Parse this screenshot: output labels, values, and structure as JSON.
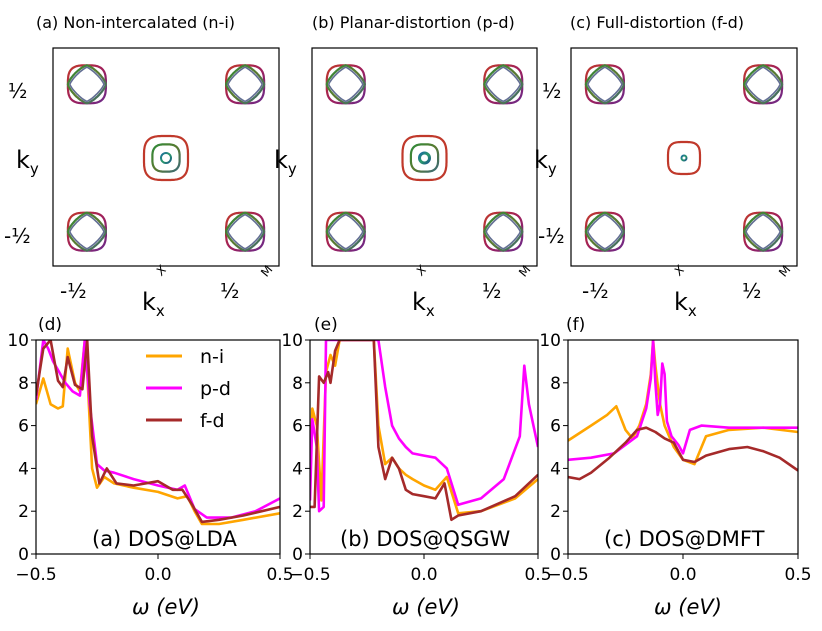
{
  "figure": {
    "fermi_panels": [
      {
        "title": "(a) Non-intercalated (n-i)",
        "center_sizes": [
          "large",
          "small"
        ],
        "corner_style": "n-i"
      },
      {
        "title": "(b) Planar-distortion (p-d)",
        "center_sizes": [
          "large",
          "small"
        ],
        "corner_style": "p-d"
      },
      {
        "title": "(c) Full-distortion (f-d)",
        "center_sizes": [
          "medium",
          "tiny"
        ],
        "corner_style": "f-d"
      }
    ],
    "fermi_axes": {
      "ylabel": "ky",
      "xlabel": "kx",
      "y_ticks": [
        "½",
        "-½"
      ],
      "x_ticks": [
        "-½",
        "½"
      ],
      "x_point": "X",
      "m_point": "M"
    }
  },
  "chart_data": [
    {
      "type": "line",
      "panel_label": "(d)",
      "annotation": "(a) DOS@LDA",
      "xlabel": "ω (eV)",
      "ylabel": "",
      "xlim": [
        -0.5,
        0.5
      ],
      "ylim": [
        0,
        10
      ],
      "x_ticks": [
        "−0.5",
        "0.0",
        "0.5"
      ],
      "y_ticks": [
        "0",
        "2",
        "4",
        "6",
        "8",
        "10"
      ],
      "legend": [
        "n-i",
        "p-d",
        "f-d"
      ],
      "legend_position": "top-center",
      "series": [
        {
          "name": "n-i",
          "color": "#ffa500",
          "x": [
            -0.5,
            -0.47,
            -0.44,
            -0.41,
            -0.39,
            -0.37,
            -0.34,
            -0.32,
            -0.3,
            -0.29,
            -0.27,
            -0.25,
            -0.22,
            -0.18,
            -0.1,
            0,
            0.08,
            0.12,
            0.15,
            0.18,
            0.25,
            0.35,
            0.5
          ],
          "y": [
            7.0,
            8.2,
            7.0,
            6.8,
            6.9,
            9.6,
            8.0,
            7.6,
            10.0,
            8.5,
            4.0,
            3.1,
            3.6,
            3.3,
            3.1,
            2.9,
            2.6,
            2.7,
            2.0,
            1.4,
            1.4,
            1.6,
            1.9
          ]
        },
        {
          "name": "p-d",
          "color": "#ff00ff",
          "x": [
            -0.5,
            -0.47,
            -0.45,
            -0.43,
            -0.41,
            -0.38,
            -0.35,
            -0.32,
            -0.3,
            -0.28,
            -0.25,
            -0.22,
            -0.18,
            -0.1,
            0,
            0.08,
            0.11,
            0.15,
            0.2,
            0.3,
            0.4,
            0.5
          ],
          "y": [
            7.2,
            10.0,
            9.6,
            9.0,
            8.6,
            8.0,
            7.6,
            7.4,
            10.0,
            7.0,
            4.2,
            3.9,
            3.8,
            3.5,
            3.2,
            3.0,
            3.2,
            2.1,
            1.7,
            1.7,
            2.0,
            2.6
          ]
        },
        {
          "name": "f-d",
          "color": "#a52a2a",
          "x": [
            -0.5,
            -0.47,
            -0.44,
            -0.41,
            -0.39,
            -0.37,
            -0.34,
            -0.31,
            -0.29,
            -0.27,
            -0.24,
            -0.21,
            -0.17,
            -0.1,
            0,
            0.06,
            0.1,
            0.14,
            0.18,
            0.25,
            0.35,
            0.5
          ],
          "y": [
            7.4,
            9.6,
            10.0,
            8.1,
            7.8,
            9.2,
            7.9,
            7.7,
            10.0,
            5.5,
            3.3,
            4.0,
            3.3,
            3.2,
            3.4,
            3.0,
            3.0,
            2.3,
            1.5,
            1.6,
            1.8,
            2.2
          ]
        }
      ]
    },
    {
      "type": "line",
      "panel_label": "(e)",
      "annotation": "(b) DOS@QSGW",
      "xlabel": "ω (eV)",
      "ylabel": "",
      "xlim": [
        -0.5,
        0.5
      ],
      "ylim": [
        0,
        10
      ],
      "x_ticks": [
        "−0.5",
        "0.0",
        "0.5"
      ],
      "y_ticks": [
        "0",
        "2",
        "4",
        "6",
        "8",
        "10"
      ],
      "series": [
        {
          "name": "n-i",
          "color": "#ffa500",
          "x": [
            -0.5,
            -0.49,
            -0.47,
            -0.45,
            -0.43,
            -0.41,
            -0.39,
            -0.37,
            -0.35,
            -0.3,
            -0.22,
            -0.2,
            -0.17,
            -0.14,
            -0.11,
            -0.08,
            -0.05,
            0,
            0.05,
            0.1,
            0.15,
            0.25,
            0.4,
            0.5
          ],
          "y": [
            3.0,
            6.8,
            6.0,
            2.5,
            8.5,
            9.3,
            8.8,
            10.0,
            10.0,
            10.0,
            10.0,
            6.0,
            4.2,
            4.5,
            4.0,
            3.7,
            3.5,
            3.2,
            3.0,
            3.6,
            1.9,
            2.0,
            2.6,
            3.5
          ]
        },
        {
          "name": "p-d",
          "color": "#ff00ff",
          "x": [
            -0.5,
            -0.49,
            -0.47,
            -0.46,
            -0.44,
            -0.43,
            -0.41,
            -0.39,
            -0.37,
            -0.35,
            -0.2,
            -0.17,
            -0.14,
            -0.11,
            -0.08,
            -0.05,
            0,
            0.05,
            0.1,
            0.15,
            0.25,
            0.35,
            0.42,
            0.44,
            0.46,
            0.5
          ],
          "y": [
            2.5,
            6.3,
            5.0,
            2.0,
            2.2,
            10.0,
            10.0,
            10.0,
            10.0,
            10.0,
            10.0,
            7.8,
            6.0,
            5.4,
            5.0,
            4.7,
            4.6,
            4.5,
            4.0,
            2.3,
            2.6,
            3.5,
            5.5,
            8.8,
            7.0,
            5.0
          ]
        },
        {
          "name": "f-d",
          "color": "#a52a2a",
          "x": [
            -0.5,
            -0.48,
            -0.46,
            -0.44,
            -0.42,
            -0.41,
            -0.39,
            -0.37,
            -0.35,
            -0.25,
            -0.22,
            -0.2,
            -0.17,
            -0.14,
            -0.11,
            -0.08,
            -0.05,
            0,
            0.05,
            0.09,
            0.12,
            0.15,
            0.25,
            0.4,
            0.5
          ],
          "y": [
            2.2,
            2.2,
            8.3,
            8.0,
            8.5,
            8.0,
            9.5,
            10.0,
            10.0,
            10.0,
            10.0,
            5.0,
            3.5,
            4.5,
            4.0,
            3.0,
            2.8,
            2.7,
            2.6,
            3.3,
            1.6,
            1.8,
            2.0,
            2.7,
            3.7
          ]
        }
      ]
    },
    {
      "type": "line",
      "panel_label": "(f)",
      "annotation": "(c) DOS@DMFT",
      "xlabel": "ω (eV)",
      "ylabel": "",
      "xlim": [
        -0.5,
        0.5
      ],
      "ylim": [
        0,
        10
      ],
      "x_ticks": [
        "−0.5",
        "0.0",
        "0.5"
      ],
      "y_ticks": [
        "0",
        "2",
        "4",
        "6",
        "8",
        "10"
      ],
      "series": [
        {
          "name": "n-i",
          "color": "#ffa500",
          "x": [
            -0.5,
            -0.4,
            -0.33,
            -0.29,
            -0.25,
            -0.22,
            -0.19,
            -0.16,
            -0.14,
            -0.13,
            -0.12,
            -0.1,
            -0.08,
            -0.04,
            0,
            0.05,
            0.1,
            0.2,
            0.35,
            0.5
          ],
          "y": [
            5.3,
            6.0,
            6.5,
            6.9,
            5.8,
            5.4,
            6.0,
            7.0,
            8.4,
            10.0,
            8.8,
            7.0,
            6.0,
            5.0,
            4.4,
            4.2,
            5.5,
            5.8,
            5.9,
            5.7
          ]
        },
        {
          "name": "p-d",
          "color": "#ff00ff",
          "x": [
            -0.5,
            -0.4,
            -0.3,
            -0.2,
            -0.16,
            -0.14,
            -0.13,
            -0.12,
            -0.11,
            -0.1,
            -0.09,
            -0.08,
            -0.07,
            -0.05,
            -0.02,
            0,
            0.03,
            0.08,
            0.2,
            0.35,
            0.5
          ],
          "y": [
            4.4,
            4.5,
            4.7,
            5.5,
            6.8,
            8.2,
            10.0,
            8.0,
            6.5,
            7.0,
            8.9,
            8.4,
            6.2,
            5.5,
            5.1,
            4.7,
            5.8,
            6.0,
            5.9,
            5.9,
            5.9
          ]
        },
        {
          "name": "f-d",
          "color": "#a52a2a",
          "x": [
            -0.5,
            -0.45,
            -0.4,
            -0.32,
            -0.25,
            -0.2,
            -0.16,
            -0.12,
            -0.08,
            -0.04,
            0,
            0.05,
            0.1,
            0.2,
            0.28,
            0.35,
            0.42,
            0.5
          ],
          "y": [
            3.6,
            3.5,
            3.8,
            4.5,
            5.2,
            5.8,
            5.9,
            5.7,
            5.4,
            5.2,
            4.4,
            4.3,
            4.6,
            4.9,
            5.0,
            4.8,
            4.5,
            3.9
          ]
        }
      ]
    }
  ]
}
